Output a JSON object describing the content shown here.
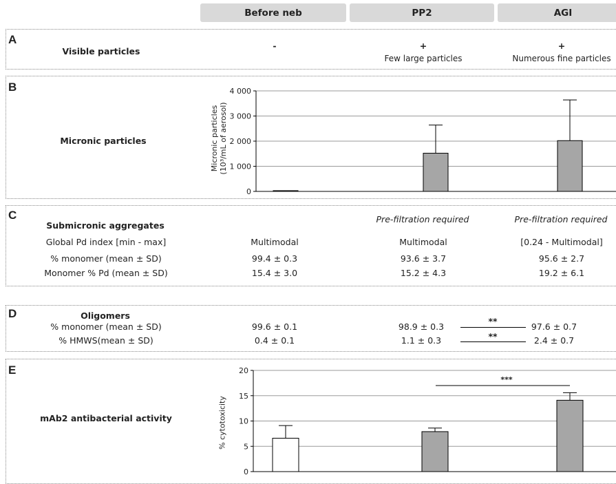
{
  "columns": [
    "Before neb",
    "PP2",
    "AGI"
  ],
  "panelA": {
    "letter": "A",
    "label": "Visible particles",
    "values": [
      "-",
      "+",
      "+"
    ],
    "notes": [
      "",
      "Few large particles",
      "Numerous fine particles"
    ]
  },
  "panelB": {
    "letter": "B",
    "label": "Micronic particles"
  },
  "panelC": {
    "letter": "C",
    "title": "Submicronic aggregates",
    "prefilter": "Pre-filtration required",
    "rows": [
      {
        "label": "Global Pd index [min - max]",
        "values": [
          "Multimodal",
          "Multimodal",
          "[0.24 - Multimodal]"
        ]
      },
      {
        "label": "% monomer (mean ± SD)",
        "values": [
          "99.4 ± 0.3",
          "93.6 ± 3.7",
          "95.6 ± 2.7"
        ]
      },
      {
        "label": "Monomer % Pd (mean ± SD)",
        "values": [
          "15.4 ± 3.0",
          "15.2 ± 4.3",
          "19.2 ± 6.1"
        ]
      }
    ]
  },
  "panelD": {
    "letter": "D",
    "title": "Oligomers",
    "sig": "**",
    "rows": [
      {
        "label": "% monomer (mean ± SD)",
        "values": [
          "99.6 ± 0.1",
          "98.9 ± 0.3",
          "97.6 ± 0.7"
        ]
      },
      {
        "label": "% HMWS(mean ± SD)",
        "values": [
          "0.4 ± 0.1",
          "1.1 ± 0.3",
          "2.4 ± 0.7"
        ]
      }
    ]
  },
  "panelE": {
    "letter": "E",
    "label": "mAb2 antibacterial activity"
  },
  "chart_data": [
    {
      "type": "bar",
      "categories": [
        "Before neb",
        "PP2",
        "AGI"
      ],
      "values": [
        30,
        1520,
        2020
      ],
      "errors": [
        0,
        1120,
        1620
      ],
      "ylabel": "Micronic particles (10³/mL of aerosol)",
      "ylim": [
        0,
        4000
      ],
      "yticks": [
        "0",
        "1 000",
        "2 000",
        "3 000",
        "4 000"
      ],
      "grid": true,
      "colors": [
        "#a6a6a6",
        "#a6a6a6",
        "#a6a6a6"
      ]
    },
    {
      "type": "bar",
      "categories": [
        "Before neb",
        "PP2",
        "AGI"
      ],
      "values": [
        6.6,
        7.9,
        14.1
      ],
      "errors": [
        2.5,
        0.7,
        1.5
      ],
      "ylabel": "% cytotoxicity",
      "ylim": [
        0,
        20
      ],
      "yticks": [
        "0",
        "5",
        "10",
        "15",
        "20"
      ],
      "grid": true,
      "significance": "***",
      "colors": [
        "#ffffff",
        "#a6a6a6",
        "#a6a6a6"
      ]
    }
  ]
}
